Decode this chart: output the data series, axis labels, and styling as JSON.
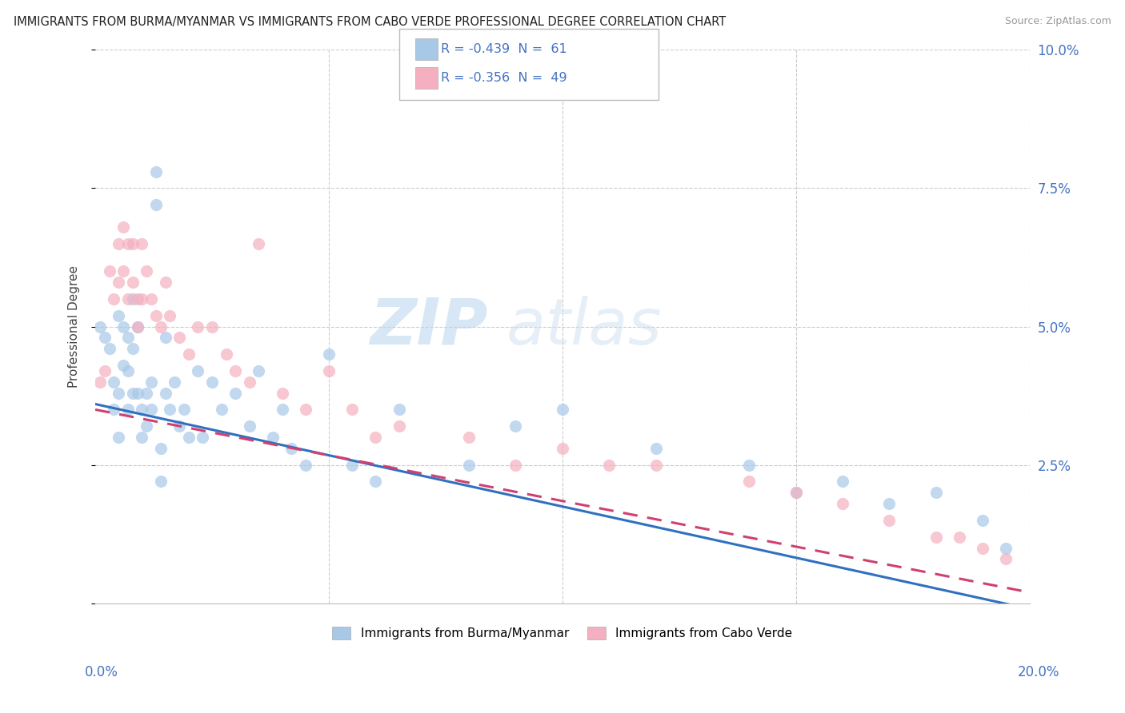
{
  "title": "IMMIGRANTS FROM BURMA/MYANMAR VS IMMIGRANTS FROM CABO VERDE PROFESSIONAL DEGREE CORRELATION CHART",
  "source": "Source: ZipAtlas.com",
  "ylabel": "Professional Degree",
  "legend_entries": [
    {
      "label": "R = -0.439  N =  61",
      "color": "#a8c8e8"
    },
    {
      "label": "R = -0.356  N =  49",
      "color": "#f4b8c8"
    }
  ],
  "legend_label_burma": "Immigrants from Burma/Myanmar",
  "legend_label_cabo": "Immigrants from Cabo Verde",
  "burma_color": "#a8c8e8",
  "cabo_color": "#f4b0c0",
  "line_burma_color": "#3070c0",
  "line_cabo_color": "#d04070",
  "axis_color": "#4472c4",
  "xlim": [
    0.0,
    0.2
  ],
  "ylim": [
    0.0,
    0.1
  ],
  "watermark_zip": "ZIP",
  "watermark_atlas": "atlas",
  "burma_scatter_x": [
    0.001,
    0.002,
    0.003,
    0.004,
    0.004,
    0.005,
    0.005,
    0.005,
    0.006,
    0.006,
    0.007,
    0.007,
    0.007,
    0.008,
    0.008,
    0.008,
    0.009,
    0.009,
    0.01,
    0.01,
    0.011,
    0.011,
    0.012,
    0.012,
    0.013,
    0.013,
    0.014,
    0.014,
    0.015,
    0.015,
    0.016,
    0.017,
    0.018,
    0.019,
    0.02,
    0.022,
    0.023,
    0.025,
    0.027,
    0.03,
    0.033,
    0.035,
    0.038,
    0.04,
    0.042,
    0.045,
    0.05,
    0.055,
    0.06,
    0.065,
    0.08,
    0.09,
    0.1,
    0.12,
    0.14,
    0.15,
    0.16,
    0.17,
    0.18,
    0.19,
    0.195
  ],
  "burma_scatter_y": [
    0.05,
    0.048,
    0.046,
    0.035,
    0.04,
    0.052,
    0.038,
    0.03,
    0.05,
    0.043,
    0.048,
    0.042,
    0.035,
    0.055,
    0.046,
    0.038,
    0.05,
    0.038,
    0.035,
    0.03,
    0.038,
    0.032,
    0.04,
    0.035,
    0.078,
    0.072,
    0.028,
    0.022,
    0.048,
    0.038,
    0.035,
    0.04,
    0.032,
    0.035,
    0.03,
    0.042,
    0.03,
    0.04,
    0.035,
    0.038,
    0.032,
    0.042,
    0.03,
    0.035,
    0.028,
    0.025,
    0.045,
    0.025,
    0.022,
    0.035,
    0.025,
    0.032,
    0.035,
    0.028,
    0.025,
    0.02,
    0.022,
    0.018,
    0.02,
    0.015,
    0.01
  ],
  "cabo_scatter_x": [
    0.001,
    0.002,
    0.003,
    0.004,
    0.005,
    0.005,
    0.006,
    0.006,
    0.007,
    0.007,
    0.008,
    0.008,
    0.009,
    0.009,
    0.01,
    0.01,
    0.011,
    0.012,
    0.013,
    0.014,
    0.015,
    0.016,
    0.018,
    0.02,
    0.022,
    0.025,
    0.028,
    0.03,
    0.033,
    0.035,
    0.04,
    0.045,
    0.05,
    0.055,
    0.06,
    0.065,
    0.08,
    0.09,
    0.1,
    0.11,
    0.12,
    0.14,
    0.15,
    0.16,
    0.17,
    0.18,
    0.185,
    0.19,
    0.195
  ],
  "cabo_scatter_y": [
    0.04,
    0.042,
    0.06,
    0.055,
    0.065,
    0.058,
    0.068,
    0.06,
    0.065,
    0.055,
    0.065,
    0.058,
    0.055,
    0.05,
    0.065,
    0.055,
    0.06,
    0.055,
    0.052,
    0.05,
    0.058,
    0.052,
    0.048,
    0.045,
    0.05,
    0.05,
    0.045,
    0.042,
    0.04,
    0.065,
    0.038,
    0.035,
    0.042,
    0.035,
    0.03,
    0.032,
    0.03,
    0.025,
    0.028,
    0.025,
    0.025,
    0.022,
    0.02,
    0.018,
    0.015,
    0.012,
    0.012,
    0.01,
    0.008
  ],
  "burma_line_x0": 0.0,
  "burma_line_y0": 0.036,
  "burma_line_x1": 0.2,
  "burma_line_y1": -0.001,
  "cabo_line_x0": 0.0,
  "cabo_line_y0": 0.035,
  "cabo_line_x1": 0.2,
  "cabo_line_y1": 0.002
}
